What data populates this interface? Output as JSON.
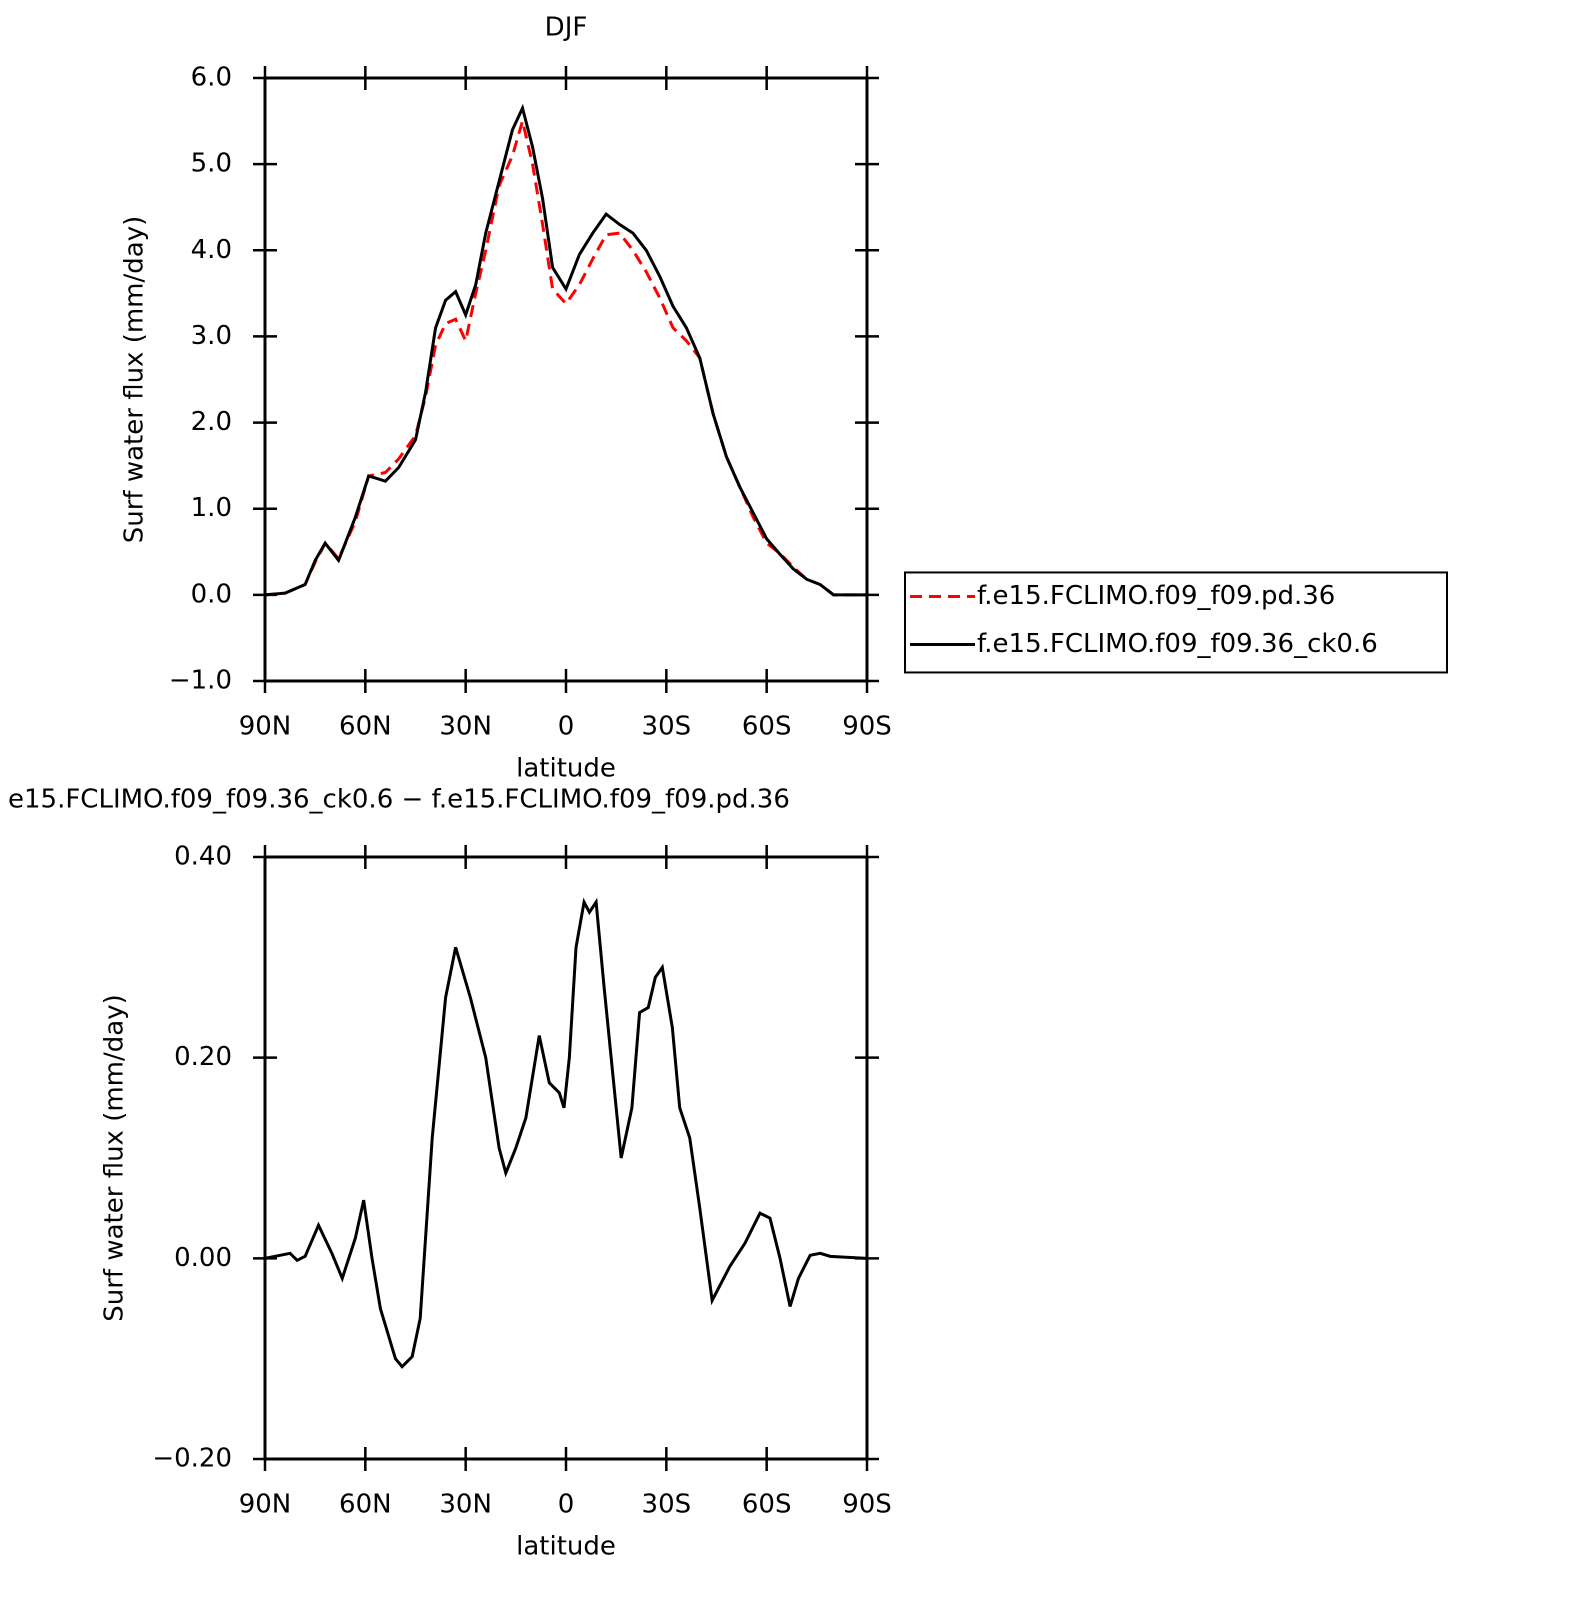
{
  "chart_data": [
    {
      "type": "line",
      "title": "DJF",
      "x_label": "latitude",
      "y_label": "Surf water flux (mm/day)",
      "x": [
        90,
        84,
        78,
        75,
        72,
        68,
        63,
        59,
        54,
        50,
        45,
        42,
        39,
        36,
        33,
        30,
        27,
        24,
        20,
        16,
        13,
        10,
        7,
        4,
        0,
        -4,
        -8,
        -12,
        -16,
        -20,
        -24,
        -28,
        -32,
        -36,
        -40,
        -44,
        -48,
        -52,
        -56,
        -60,
        -64,
        -68,
        -72,
        -76,
        -80,
        -85,
        -90
      ],
      "series": [
        {
          "name": "f.e15.FCLIMO.f09_f09.pd.36",
          "color": "#ff0000",
          "line_style": "dashed",
          "values": [
            0,
            0.02,
            0.12,
            0.38,
            0.6,
            0.42,
            0.85,
            1.38,
            1.42,
            1.58,
            1.85,
            2.3,
            2.9,
            3.15,
            3.2,
            2.95,
            3.5,
            4.0,
            4.75,
            5.1,
            5.5,
            5.0,
            4.3,
            3.55,
            3.38,
            3.6,
            3.9,
            4.18,
            4.2,
            4.0,
            3.75,
            3.45,
            3.1,
            2.95,
            2.75,
            2.1,
            1.6,
            1.25,
            0.9,
            0.6,
            0.48,
            0.32,
            0.18,
            0.12,
            0,
            0,
            0
          ]
        },
        {
          "name": "f.e15.FCLIMO.f09_f09.36_ck0.6",
          "color": "#000000",
          "line_style": "solid",
          "values": [
            0,
            0.02,
            0.12,
            0.4,
            0.6,
            0.4,
            0.9,
            1.38,
            1.32,
            1.48,
            1.8,
            2.35,
            3.1,
            3.42,
            3.52,
            3.25,
            3.6,
            4.2,
            4.8,
            5.4,
            5.65,
            5.2,
            4.6,
            3.8,
            3.55,
            3.95,
            4.2,
            4.42,
            4.3,
            4.2,
            4.0,
            3.7,
            3.35,
            3.1,
            2.75,
            2.1,
            1.6,
            1.25,
            0.95,
            0.65,
            0.47,
            0.3,
            0.18,
            0.12,
            0,
            0,
            0
          ]
        }
      ],
      "xlim": [
        90,
        -90
      ],
      "xticks": [
        {
          "value": 90,
          "label": "90N"
        },
        {
          "value": 60,
          "label": "60N"
        },
        {
          "value": 30,
          "label": "30N"
        },
        0,
        {
          "value": -30,
          "label": "30S"
        },
        {
          "value": -60,
          "label": "60S"
        },
        {
          "value": -90,
          "label": "90S"
        }
      ],
      "ylim": [
        -1,
        6
      ],
      "yticks": [
        {
          "value": -1,
          "label": "−1.0"
        },
        {
          "value": 0,
          "label": "0.0"
        },
        {
          "value": 1,
          "label": "1.0"
        },
        {
          "value": 2,
          "label": "2.0"
        },
        {
          "value": 3,
          "label": "3.0"
        },
        {
          "value": 4,
          "label": "4.0"
        },
        {
          "value": 5,
          "label": "5.0"
        },
        {
          "value": 6,
          "label": "6.0"
        }
      ],
      "legend": "right"
    },
    {
      "type": "line",
      "title": "e15.FCLIMO.f09_f09.36_ck0.6 − f.e15.FCLIMO.f09_f09.pd.36",
      "x_label": "latitude",
      "y_label": "Surf water flux (mm/day)",
      "x": [
        90,
        82.5,
        80.4,
        78,
        74,
        70,
        66.9,
        63,
        60.5,
        58,
        55.5,
        51,
        49,
        46,
        43.6,
        40,
        36,
        33,
        28.6,
        24,
        20,
        18,
        15,
        12,
        8,
        5,
        2,
        0.6,
        -1,
        -3,
        -5.4,
        -7,
        -9,
        -11.4,
        -16.5,
        -19.7,
        -22,
        -24.6,
        -26.7,
        -28.8,
        -31.8,
        -34,
        -37,
        -40,
        -43.7,
        -49,
        -53.5,
        -58,
        -61,
        -64,
        -67,
        -69.5,
        -73,
        -76,
        -79,
        -90
      ],
      "series": [
        {
          "color": "#000000",
          "line_style": "solid",
          "values": [
            0,
            0.005,
            -0.002,
            0.002,
            0.033,
            0.005,
            -0.02,
            0.02,
            0.058,
            0,
            -0.05,
            -0.1,
            -0.108,
            -0.098,
            -0.06,
            0.12,
            0.26,
            0.31,
            0.26,
            0.2,
            0.11,
            0.085,
            0.11,
            0.14,
            0.222,
            0.175,
            0.165,
            0.15,
            0.2,
            0.31,
            0.355,
            0.345,
            0.355,
            0.27,
            0.1,
            0.15,
            0.245,
            0.25,
            0.28,
            0.29,
            0.23,
            0.15,
            0.12,
            0.05,
            -0.042,
            -0.008,
            0.015,
            0.045,
            0.04,
            0,
            -0.048,
            -0.02,
            0.003,
            0.005,
            0.002,
            0
          ]
        }
      ],
      "xlim": [
        90,
        -90
      ],
      "xticks": [
        {
          "value": 90,
          "label": "90N"
        },
        {
          "value": 60,
          "label": "60N"
        },
        {
          "value": 30,
          "label": "30N"
        },
        0,
        {
          "value": -30,
          "label": "30S"
        },
        {
          "value": -60,
          "label": "60S"
        },
        {
          "value": -90,
          "label": "90S"
        }
      ],
      "ylim": [
        -0.2,
        0.4
      ],
      "yticks": [
        {
          "value": -0.2,
          "label": "−0.20"
        },
        {
          "value": 0,
          "label": "0.00"
        },
        {
          "value": 0.2,
          "label": "0.20"
        },
        {
          "value": 0.4,
          "label": "0.40"
        }
      ]
    }
  ]
}
